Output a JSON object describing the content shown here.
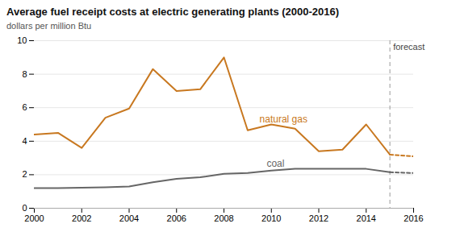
{
  "chart_data": {
    "type": "line",
    "title": "Average fuel receipt costs at electric generating plants (2000-2016)",
    "ylabel": "dollars per million Btu",
    "x": [
      2000,
      2001,
      2002,
      2003,
      2004,
      2005,
      2006,
      2007,
      2008,
      2009,
      2010,
      2011,
      2012,
      2013,
      2014,
      2015,
      2016
    ],
    "series": [
      {
        "name": "natural gas",
        "color": "#c87820",
        "line_style": "solid",
        "values": [
          4.4,
          4.5,
          3.6,
          5.4,
          5.95,
          8.3,
          7.0,
          7.1,
          9.0,
          4.65,
          5.0,
          4.75,
          3.4,
          3.5,
          5.0,
          3.2,
          null
        ]
      },
      {
        "name": "natural gas",
        "color": "#c87820",
        "line_style": "dashed",
        "values": [
          null,
          null,
          null,
          null,
          null,
          null,
          null,
          null,
          null,
          null,
          null,
          null,
          null,
          null,
          null,
          3.2,
          3.1
        ]
      },
      {
        "name": "coal",
        "color": "#666666",
        "line_style": "solid",
        "values": [
          1.2,
          1.2,
          1.22,
          1.25,
          1.3,
          1.55,
          1.75,
          1.85,
          2.05,
          2.1,
          2.25,
          2.35,
          2.35,
          2.35,
          2.35,
          2.15,
          null
        ]
      },
      {
        "name": "coal",
        "color": "#666666",
        "line_style": "dashed",
        "values": [
          null,
          null,
          null,
          null,
          null,
          null,
          null,
          null,
          null,
          null,
          null,
          null,
          null,
          null,
          null,
          2.15,
          2.1
        ]
      }
    ],
    "xlim": [
      2000,
      2016
    ],
    "xticks": [
      2000,
      2002,
      2004,
      2006,
      2008,
      2010,
      2012,
      2014,
      2016
    ],
    "ylim": [
      0,
      10
    ],
    "yticks": [
      0,
      2,
      4,
      6,
      8,
      10
    ],
    "grid": true,
    "forecast_year": 2015,
    "forecast_label": "forecast",
    "annotations": [
      {
        "text": "natural gas",
        "x": 2009.5,
        "y": 5.3,
        "color": "#c87820"
      },
      {
        "text": "coal",
        "x": 2009.8,
        "y": 2.68,
        "color": "#666666"
      }
    ]
  }
}
